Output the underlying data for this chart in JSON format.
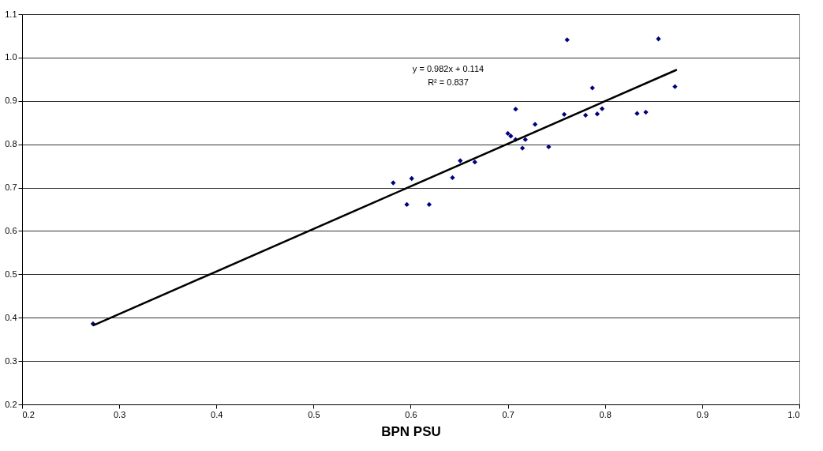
{
  "chart_data": {
    "type": "scatter",
    "xlabel": "BPN PSU",
    "xlim": [
      0.2,
      1.0
    ],
    "xticks": [
      0.2,
      0.3,
      0.4,
      0.5,
      0.6,
      0.7,
      0.8,
      0.9,
      {
        "value": 1,
        "label": "1.0"
      }
    ],
    "ylim": [
      0.2,
      1.1
    ],
    "yticks": [
      0.2,
      0.3,
      0.4,
      0.5,
      0.6,
      0.7,
      0.8,
      0.9,
      {
        "value": 1,
        "label": "1.0"
      },
      1.1
    ],
    "grid": "y",
    "series": [
      {
        "marker": "diamond",
        "color": "#000080",
        "x": [
          0.273,
          0.582,
          0.596,
          0.601,
          0.619,
          0.643,
          0.651,
          0.666,
          0.7,
          0.703,
          0.708,
          0.708,
          0.718,
          0.715,
          0.728,
          0.742,
          0.758,
          0.761,
          0.78,
          0.787,
          0.792,
          0.797,
          0.833,
          0.842,
          0.855,
          0.872
        ],
        "values": [
          0.386,
          0.711,
          0.661,
          0.721,
          0.661,
          0.723,
          0.762,
          0.759,
          0.825,
          0.819,
          0.811,
          0.881,
          0.811,
          0.791,
          0.846,
          0.794,
          0.869,
          1.041,
          0.867,
          0.93,
          0.87,
          0.882,
          0.871,
          0.874,
          1.043,
          0.933
        ]
      },
      {
        "type": "line",
        "color": "#000000",
        "x": [
          0.273,
          0.874
        ],
        "values": [
          0.382,
          0.972
        ]
      }
    ],
    "annotations": [
      "y = 0.982x + 0.114",
      "R² = 0.837"
    ]
  }
}
